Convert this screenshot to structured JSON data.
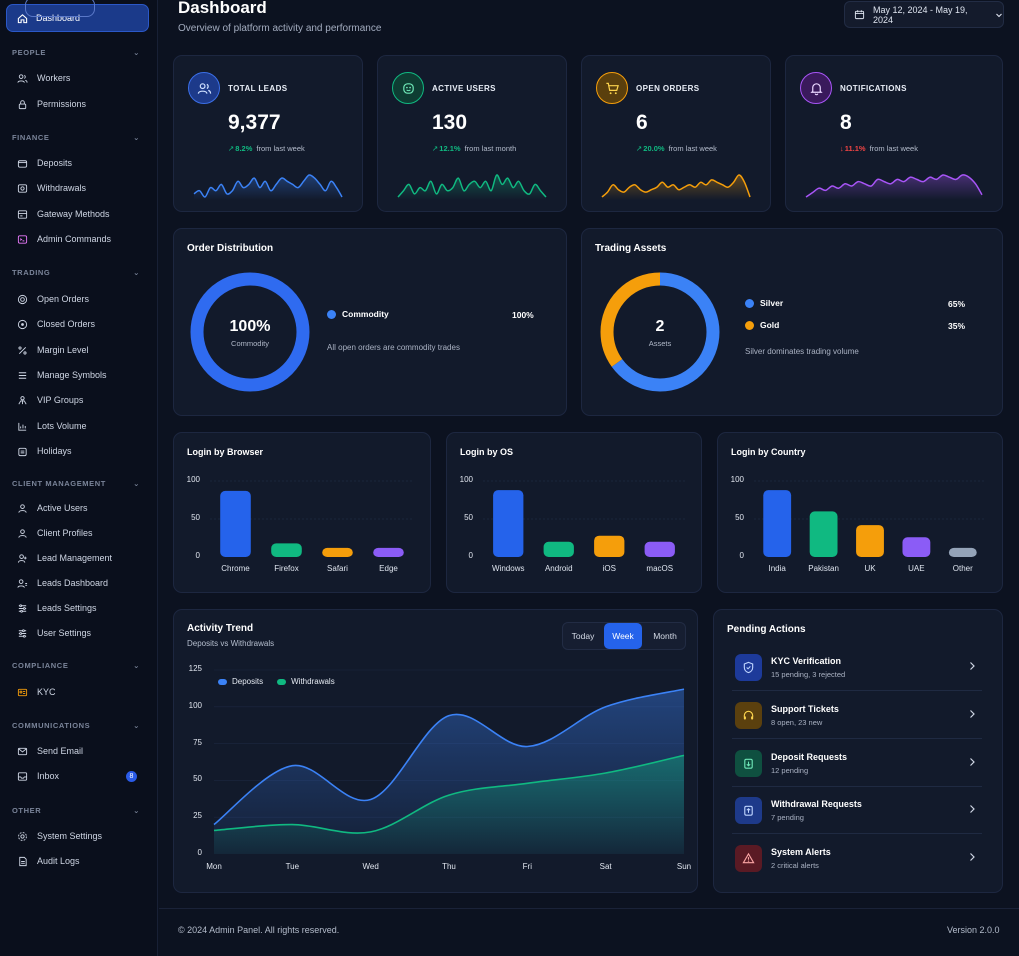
{
  "sidebar": {
    "active": {
      "label": "Dashboard",
      "icon": "home-icon"
    },
    "sections": [
      {
        "title": "PEOPLE",
        "items": [
          {
            "label": "Workers",
            "icon": "users-icon"
          },
          {
            "label": "Permissions",
            "icon": "lock-icon"
          }
        ]
      },
      {
        "title": "FINANCE",
        "items": [
          {
            "label": "Deposits",
            "icon": "wallet-icon"
          },
          {
            "label": "Withdrawals",
            "icon": "withdraw-icon"
          },
          {
            "label": "Gateway Methods",
            "icon": "gateway-icon"
          },
          {
            "label": "Admin Commands",
            "icon": "terminal-icon"
          }
        ]
      },
      {
        "title": "TRADING",
        "items": [
          {
            "label": "Open Orders",
            "icon": "target-icon"
          },
          {
            "label": "Closed Orders",
            "icon": "circle-check-icon"
          },
          {
            "label": "Margin Level",
            "icon": "percent-icon"
          },
          {
            "label": "Manage Symbols",
            "icon": "list-icon"
          },
          {
            "label": "VIP Groups",
            "icon": "group-icon"
          },
          {
            "label": "Lots Volume",
            "icon": "chart-icon"
          },
          {
            "label": "Holidays",
            "icon": "calendar-icon"
          }
        ]
      },
      {
        "title": "CLIENT MANAGEMENT",
        "items": [
          {
            "label": "Active Users",
            "icon": "user-icon"
          },
          {
            "label": "Client Profiles",
            "icon": "profile-icon"
          },
          {
            "label": "Lead Management",
            "icon": "lead-icon"
          },
          {
            "label": "Leads Dashboard",
            "icon": "dashboard-icon"
          },
          {
            "label": "Leads Settings",
            "icon": "sliders-icon"
          },
          {
            "label": "User Settings",
            "icon": "user-sliders-icon"
          }
        ]
      },
      {
        "title": "COMPLIANCE",
        "items": [
          {
            "label": "KYC",
            "icon": "id-card-icon"
          }
        ]
      },
      {
        "title": "COMMUNICATIONS",
        "items": [
          {
            "label": "Send Email",
            "icon": "mail-icon"
          },
          {
            "label": "Inbox",
            "icon": "inbox-icon",
            "badge": "8"
          }
        ]
      },
      {
        "title": "OTHER",
        "items": [
          {
            "label": "System Settings",
            "icon": "gear-icon"
          },
          {
            "label": "Audit Logs",
            "icon": "log-icon"
          }
        ]
      }
    ]
  },
  "header": {
    "title": "Dashboard",
    "subtitle": "Overview of platform activity and performance",
    "date_range": "May 12, 2024 - May 19, 2024"
  },
  "stats": [
    {
      "label": "TOTAL LEADS",
      "value": "9,377",
      "change": "8.2%",
      "direction": "up",
      "period": "from last week",
      "color": "#3b82f6",
      "icon": "users-icon",
      "spark": [
        5,
        6,
        4,
        7,
        6,
        8,
        5,
        6,
        9,
        7,
        8,
        10,
        7,
        9,
        6,
        8,
        10,
        9,
        8,
        7,
        9,
        11,
        10,
        8,
        6,
        9,
        7,
        4
      ]
    },
    {
      "label": "ACTIVE USERS",
      "value": "130",
      "change": "12.1%",
      "direction": "up",
      "period": "from last month",
      "color": "#10b981",
      "icon": "smile-icon",
      "spark": [
        4,
        6,
        8,
        5,
        7,
        6,
        9,
        5,
        8,
        6,
        7,
        10,
        6,
        8,
        9,
        7,
        9,
        6,
        11,
        8,
        10,
        7,
        9,
        6,
        5,
        8,
        6,
        4
      ]
    },
    {
      "label": "OPEN ORDERS",
      "value": "6",
      "change": "20.0%",
      "direction": "up",
      "period": "from last week",
      "color": "#f59e0b",
      "icon": "cart-icon",
      "spark": [
        3,
        5,
        8,
        6,
        5,
        7,
        8,
        6,
        5,
        6,
        7,
        9,
        7,
        8,
        6,
        7,
        8,
        7,
        9,
        8,
        10,
        9,
        8,
        7,
        9,
        12,
        9,
        3
      ]
    },
    {
      "label": "NOTIFICATIONS",
      "value": "8",
      "change": "11.1%",
      "direction": "down",
      "period": "from last week",
      "color": "#a855f7",
      "icon": "bell-icon",
      "spark": [
        2,
        4,
        6,
        5,
        7,
        6,
        8,
        7,
        9,
        8,
        7,
        10,
        9,
        8,
        10,
        9,
        11,
        10,
        9,
        11,
        10,
        12,
        11,
        10,
        12,
        11,
        8,
        3
      ]
    }
  ],
  "order_distribution": {
    "title": "Order Distribution",
    "center_value": "100%",
    "center_label": "Commodity",
    "legend": [
      {
        "label": "Commodity",
        "pct": "100%",
        "color": "#3b82f6"
      }
    ],
    "note": "All open orders are commodity trades"
  },
  "trading_assets": {
    "title": "Trading Assets",
    "center_value": "2",
    "center_label": "Assets",
    "legend": [
      {
        "label": "Silver",
        "pct": "65%",
        "color": "#3b82f6"
      },
      {
        "label": "Gold",
        "pct": "35%",
        "color": "#f59e0b"
      }
    ],
    "note": "Silver dominates trading volume"
  },
  "chart_data": [
    {
      "type": "bar",
      "title": "Login by Browser",
      "categories": [
        "Chrome",
        "Firefox",
        "Safari",
        "Edge"
      ],
      "values": [
        87,
        18,
        12,
        12
      ],
      "colors": [
        "#2563eb",
        "#10b981",
        "#f59e0b",
        "#8b5cf6"
      ],
      "yticks": [
        "100",
        "50",
        "0"
      ],
      "ylim": [
        0,
        100
      ]
    },
    {
      "type": "bar",
      "title": "Login by OS",
      "categories": [
        "Windows",
        "Android",
        "iOS",
        "macOS"
      ],
      "values": [
        88,
        20,
        28,
        20
      ],
      "colors": [
        "#2563eb",
        "#10b981",
        "#f59e0b",
        "#8b5cf6"
      ],
      "yticks": [
        "100",
        "50",
        "0"
      ],
      "ylim": [
        0,
        100
      ]
    },
    {
      "type": "bar",
      "title": "Login by Country",
      "categories": [
        "India",
        "Pakistan",
        "UK",
        "UAE",
        "Other"
      ],
      "values": [
        88,
        60,
        42,
        26,
        12
      ],
      "colors": [
        "#2563eb",
        "#10b981",
        "#f59e0b",
        "#8b5cf6",
        "#94a3b8"
      ],
      "yticks": [
        "100",
        "50",
        "0"
      ],
      "ylim": [
        0,
        100
      ]
    },
    {
      "type": "area",
      "title": "Activity Trend",
      "subtitle": "Deposits vs Withdrawals",
      "x": [
        "Mon",
        "Tue",
        "Wed",
        "Thu",
        "Fri",
        "Sat",
        "Sun"
      ],
      "yticks": [
        "125",
        "100",
        "75",
        "50",
        "25",
        "0"
      ],
      "ylim": [
        0,
        125
      ],
      "series": [
        {
          "name": "Deposits",
          "values": [
            20,
            60,
            37,
            94,
            73,
            100,
            112
          ],
          "color": "#3b82f6"
        },
        {
          "name": "Withdrawals",
          "values": [
            16,
            20,
            15,
            40,
            48,
            55,
            67
          ],
          "color": "#10b981"
        }
      ]
    }
  ],
  "activity_tabs": {
    "today": "Today",
    "week": "Week",
    "month": "Month",
    "active": "Week"
  },
  "pending": {
    "title": "Pending Actions",
    "items": [
      {
        "title": "KYC Verification",
        "sub": "15 pending, 3 rejected",
        "icon": "shield-icon",
        "bg": "#1e40af",
        "fg": "#93c5fd"
      },
      {
        "title": "Support Tickets",
        "sub": "8 open, 23 new",
        "icon": "headset-icon",
        "bg": "#5b3d0f",
        "fg": "#fbbf24"
      },
      {
        "title": "Deposit Requests",
        "sub": "12 pending",
        "icon": "deposit-icon",
        "bg": "#0f4d3a",
        "fg": "#34d399"
      },
      {
        "title": "Withdrawal Requests",
        "sub": "7 pending",
        "icon": "withdraw-icon",
        "bg": "#1e3a8a",
        "fg": "#93c5fd"
      },
      {
        "title": "System Alerts",
        "sub": "2 critical alerts",
        "icon": "alert-icon",
        "bg": "#5a1a22",
        "fg": "#f87171"
      }
    ]
  },
  "footer": {
    "copyright": "© 2024 Admin Panel. All rights reserved.",
    "version": "Version 2.0.0"
  }
}
